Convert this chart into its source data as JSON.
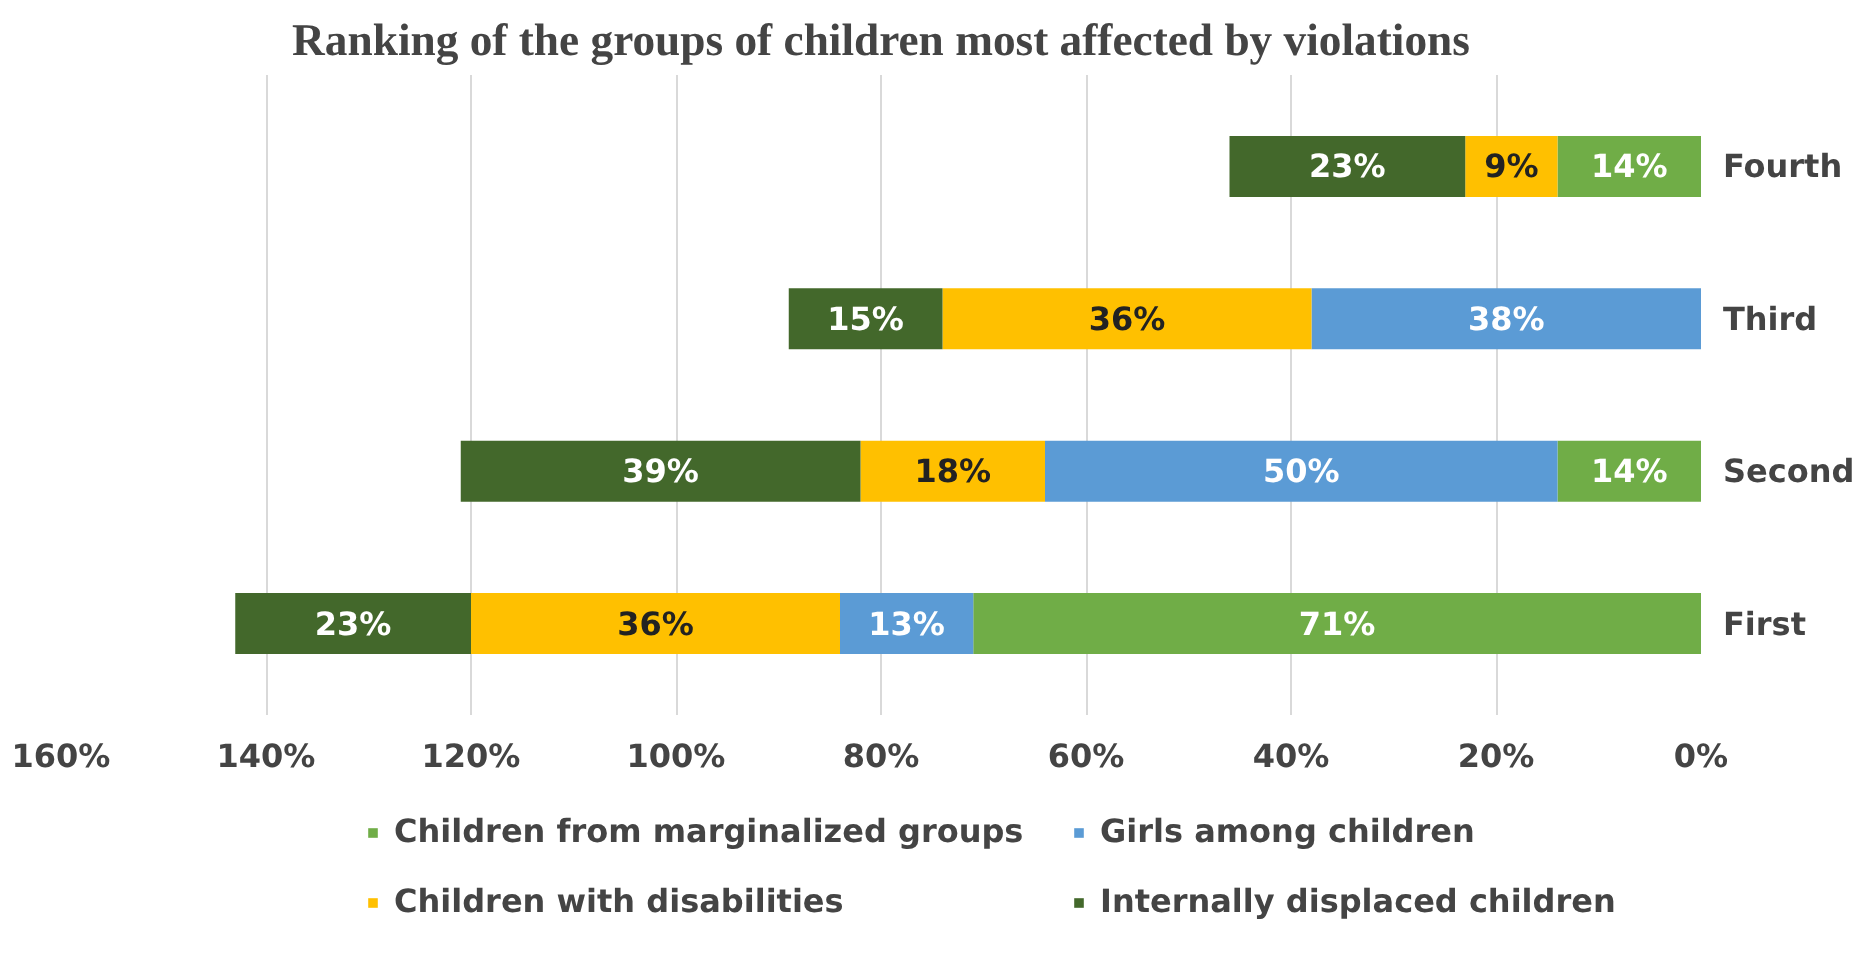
{
  "chart_data": {
    "type": "bar",
    "orientation": "horizontal",
    "stacked": true,
    "title": "Ranking of the groups of children most affected by violations",
    "categories": [
      "Fourth",
      "Third",
      "Second",
      "First"
    ],
    "series": [
      {
        "name": "Children from marginalized groups",
        "color": "#70ad47",
        "values": [
          14,
          null,
          14,
          71
        ],
        "value_labels": [
          "14%",
          null,
          "14%",
          "71%"
        ]
      },
      {
        "name": "Girls among children",
        "color": "#5b9bd5",
        "values": [
          null,
          38,
          50,
          13
        ],
        "value_labels": [
          null,
          "38%",
          "50%",
          "13%"
        ]
      },
      {
        "name": "Children with disabilities",
        "color": "#ffc000",
        "values": [
          9,
          36,
          18,
          36
        ],
        "value_labels": [
          "9%",
          "36%",
          "18%",
          "36%"
        ]
      },
      {
        "name": "Internally displaced children",
        "color": "#43682b",
        "values": [
          23,
          15,
          39,
          23
        ],
        "value_labels": [
          "23%",
          "15%",
          "39%",
          "23%"
        ]
      }
    ],
    "xlim": [
      160,
      0
    ],
    "xticks": [
      {
        "value": 160,
        "label": "160%"
      },
      {
        "value": 140,
        "label": "140%"
      },
      {
        "value": 120,
        "label": "120%"
      },
      {
        "value": 100,
        "label": "100%"
      },
      {
        "value": 80,
        "label": "80%"
      },
      {
        "value": 60,
        "label": "60%"
      },
      {
        "value": 40,
        "label": "40%"
      },
      {
        "value": 20,
        "label": "20%"
      },
      {
        "value": 0,
        "label": "0%"
      }
    ],
    "grid": "x",
    "legend": "bottom"
  }
}
